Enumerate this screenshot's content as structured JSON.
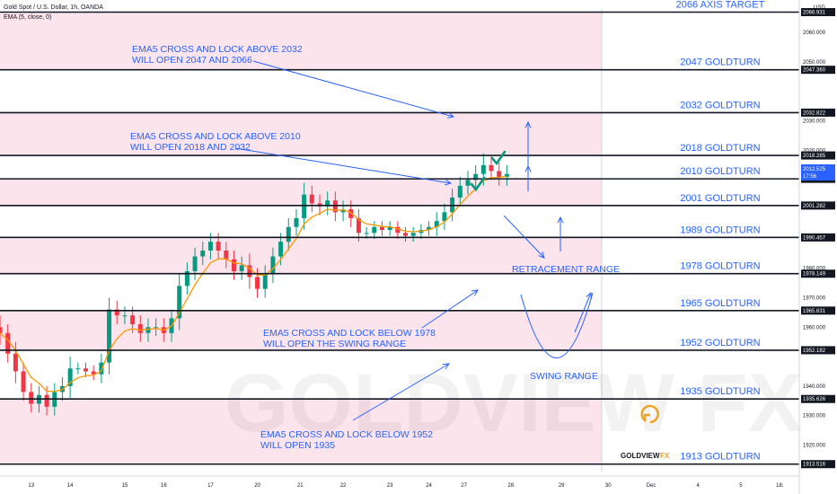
{
  "header": {
    "symbol": "Gold Spot / U.S. Dollar, 1h, OANDA",
    "indicator": "EMA (5, close, 0)",
    "currency": "USD"
  },
  "colors": {
    "zone": "#fce4ec",
    "level_line": "#131722",
    "text_blue": "#2962ff",
    "up_candle": "#089981",
    "down_candle": "#f23645",
    "ema": "#ff9800",
    "check": "#089981",
    "last_price_tag": "#2962ff"
  },
  "watermark": "GOLDVIEW FX",
  "logo": {
    "text_a": "GOLDVIEW",
    "text_b": "FX"
  },
  "chart_data": {
    "type": "candlestick",
    "y_range": [
      1911.0,
      2068.0
    ],
    "x_range": [
      0,
      205
    ],
    "x_ticks": [
      {
        "label": "13",
        "x": 8
      },
      {
        "label": "14",
        "x": 18
      },
      {
        "label": "15",
        "x": 32
      },
      {
        "label": "16",
        "x": 42
      },
      {
        "label": "17",
        "x": 54
      },
      {
        "label": "20",
        "x": 66
      },
      {
        "label": "21",
        "x": 77
      },
      {
        "label": "22",
        "x": 88
      },
      {
        "label": "23",
        "x": 100
      },
      {
        "label": "24",
        "x": 110
      },
      {
        "label": "27",
        "x": 119
      },
      {
        "label": "28",
        "x": 131
      },
      {
        "label": "29",
        "x": 144
      },
      {
        "label": "30",
        "x": 156
      },
      {
        "label": "Dec",
        "x": 167
      },
      {
        "label": "4",
        "x": 179
      },
      {
        "label": "5",
        "x": 190
      },
      {
        "label": "18:",
        "x": 200
      }
    ],
    "y_tick_labels": [
      "2060.000",
      "2050.000",
      "2030.000",
      "2020.000",
      "1980.000",
      "1970.000",
      "1960.000",
      "1940.000",
      "1930.000",
      "1920.000"
    ],
    "last_price": {
      "value": "2012.525",
      "countdown": "17:56"
    },
    "levels": [
      {
        "price": 2066.931,
        "label": "2066 AXIS TARGET",
        "tag": "2066.931"
      },
      {
        "price": 2047.36,
        "label": "2047 GOLDTURN",
        "tag": "2047.360"
      },
      {
        "price": 2032.822,
        "label": "2032 GOLDTURN",
        "tag": "2032.822"
      },
      {
        "price": 2018.285,
        "label": "2018 GOLDTURN",
        "tag": "2018.285"
      },
      {
        "price": 2010.348,
        "label": "2010 GOLDTURN",
        "tag": "2010.348"
      },
      {
        "price": 2001.282,
        "label": "2001 GOLDTURN",
        "tag": "2001.282"
      },
      {
        "price": 1990.457,
        "label": "1989 GOLDTURN",
        "tag": "1990.457"
      },
      {
        "price": 1978.149,
        "label": "1978 GOLDTURN",
        "tag": "1978.149"
      },
      {
        "price": 1965.631,
        "label": "1965 GOLDTURN",
        "tag": "1965.631"
      },
      {
        "price": 1952.182,
        "label": "1952 GOLDTURN",
        "tag": "1952.182"
      },
      {
        "price": 1935.626,
        "label": "1935 GOLDTURN",
        "tag": "1935.626"
      },
      {
        "price": 1913.516,
        "label": "1913 GOLDTURN",
        "tag": "1913.516"
      }
    ],
    "zones": [
      [
        2047.36,
        2066.931
      ],
      [
        2018.285,
        2032.822
      ],
      [
        2001.282,
        2010.348
      ],
      [
        1978.149,
        1990.457
      ],
      [
        1952.182,
        1965.631
      ],
      [
        1913.516,
        1935.626
      ]
    ],
    "annotations": [
      {
        "id": "ann-2032",
        "lines": [
          "EMA5 CROSS AND LOCK ABOVE 2032",
          "WILL OPEN 2047 AND 2066"
        ]
      },
      {
        "id": "ann-2010",
        "lines": [
          "EMA5 CROSS AND LOCK ABOVE 2010",
          "WILL OPEN 2018 AND 2032"
        ]
      },
      {
        "id": "ann-1978",
        "lines": [
          "EMA5 CROSS AND LOCK BELOW 1978",
          "WILL OPEN THE SWING RANGE"
        ]
      },
      {
        "id": "ann-1952",
        "lines": [
          "EMA5 CROSS AND LOCK BELOW 1952",
          "WILL OPEN 1935"
        ]
      },
      {
        "id": "retracement",
        "lines": [
          "RETRACEMENT RANGE"
        ]
      },
      {
        "id": "swing",
        "lines": [
          "SWING RANGE"
        ]
      }
    ],
    "series": {
      "x": [
        0,
        2,
        4,
        6,
        8,
        10,
        12,
        14,
        16,
        18,
        20,
        22,
        24,
        26,
        28,
        30,
        32,
        34,
        36,
        38,
        40,
        42,
        44,
        46,
        48,
        50,
        52,
        54,
        56,
        58,
        60,
        62,
        64,
        66,
        68,
        70,
        72,
        74,
        76,
        78,
        80,
        82,
        84,
        86,
        88,
        90,
        92,
        94,
        96,
        98,
        100,
        102,
        104,
        106,
        108,
        110,
        112,
        114,
        116,
        118,
        120,
        122,
        124,
        126,
        128,
        130
      ],
      "close": [
        1958,
        1951,
        1945,
        1938,
        1934,
        1937,
        1933,
        1938,
        1940,
        1946,
        1946,
        1945,
        1944,
        1948,
        1966,
        1964,
        1964,
        1961,
        1958,
        1960,
        1960,
        1958,
        1963,
        1974,
        1979,
        1984,
        1986,
        1989,
        1986,
        1983,
        1979,
        1981,
        1977,
        1973,
        1978,
        1984,
        1989,
        1994,
        1997,
        2005,
        2002,
        2001,
        2003,
        1999,
        2000,
        1997,
        1992,
        1992,
        1994,
        1993,
        1994,
        1992,
        1991,
        1992,
        1993,
        1994,
        1996,
        1999,
        2004,
        2008,
        2010,
        2012,
        2015,
        2013,
        2011,
        2012
      ],
      "range": [
        4,
        3,
        4,
        3,
        3,
        3,
        3,
        3,
        3,
        4,
        2,
        2,
        2,
        3,
        4,
        3,
        3,
        3,
        3,
        3,
        3,
        3,
        3,
        4,
        3,
        3,
        3,
        3,
        3,
        3,
        3,
        3,
        4,
        3,
        3,
        3,
        3,
        3,
        3,
        4,
        3,
        3,
        3,
        3,
        3,
        3,
        3,
        2,
        2,
        2,
        2,
        2,
        2,
        2,
        2,
        2,
        3,
        3,
        3,
        3,
        3,
        3,
        4,
        3,
        3,
        3
      ]
    }
  }
}
